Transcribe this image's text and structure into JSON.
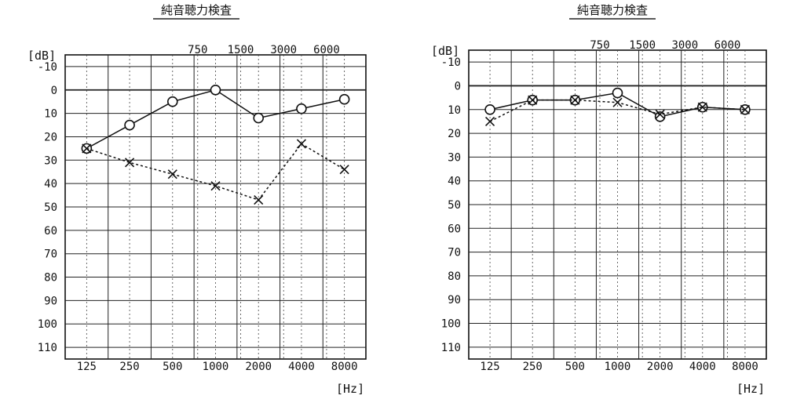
{
  "chart_data": [
    {
      "type": "line",
      "title": "純音聴力検査",
      "ylabel": "[dB]",
      "xlabel": "[Hz]",
      "ylim": [
        -15,
        115
      ],
      "y_ticks": [
        "-10",
        "0",
        "10",
        "20",
        "30",
        "40",
        "50",
        "60",
        "70",
        "80",
        "90",
        "100",
        "110"
      ],
      "x_ticks_bottom": [
        "125",
        "250",
        "500",
        "1000",
        "2000",
        "4000",
        "8000"
      ],
      "x_ticks_top": [
        "750",
        "1500",
        "3000",
        "6000"
      ],
      "grid": true,
      "series": [
        {
          "marker": "circle",
          "line": "solid",
          "x": [
            125,
            250,
            500,
            1000,
            2000,
            4000,
            8000
          ],
          "values": [
            25,
            15,
            5,
            0,
            12,
            8,
            4
          ]
        },
        {
          "marker": "cross",
          "line": "dotted",
          "x": [
            125,
            250,
            500,
            1000,
            2000,
            4000,
            8000
          ],
          "values": [
            25,
            31,
            36,
            41,
            47,
            23,
            34
          ]
        }
      ]
    },
    {
      "type": "line",
      "title": "純音聴力検査",
      "ylabel": "[dB]",
      "xlabel": "[Hz]",
      "ylim": [
        -15,
        115
      ],
      "y_ticks": [
        "-10",
        "0",
        "10",
        "20",
        "30",
        "40",
        "50",
        "60",
        "70",
        "80",
        "90",
        "100",
        "110"
      ],
      "x_ticks_bottom": [
        "125",
        "250",
        "500",
        "1000",
        "2000",
        "4000",
        "8000"
      ],
      "x_ticks_top": [
        "750",
        "1500",
        "3000",
        "6000"
      ],
      "grid": true,
      "series": [
        {
          "marker": "circle",
          "line": "solid",
          "x": [
            125,
            250,
            500,
            1000,
            2000,
            4000,
            8000
          ],
          "values": [
            10,
            6,
            6,
            3,
            13,
            9,
            10
          ]
        },
        {
          "marker": "cross",
          "line": "dotted",
          "x": [
            125,
            250,
            500,
            1000,
            2000,
            4000,
            8000
          ],
          "values": [
            15,
            6,
            6,
            7,
            12,
            9,
            10
          ]
        }
      ]
    }
  ]
}
